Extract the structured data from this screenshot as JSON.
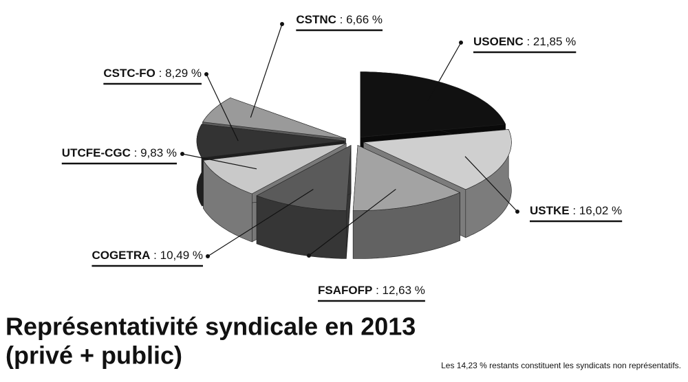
{
  "chart_data": {
    "type": "pie",
    "title": "Représentativité syndicale en 2013",
    "subtitle": "(privé + public)",
    "note": "Les 14,23 % restants constituent les syndicats non représentatifs.",
    "label_separator": " : ",
    "categories": [
      "USOENC",
      "USTKE",
      "FSAFOFP",
      "COGETRA",
      "UTCFE-CGC",
      "CSTC-FO",
      "CSTNC"
    ],
    "values": [
      21.85,
      16.02,
      12.63,
      10.49,
      9.83,
      8.29,
      6.66
    ],
    "value_labels": [
      "21,85 %",
      "16,02 %",
      "12,63 %",
      "10,49 %",
      "9,83 %",
      "8,29 %",
      "6,66 %"
    ],
    "colors": [
      "#111111",
      "#cfcfcf",
      "#a3a3a3",
      "#5a5a5a",
      "#c9c9c9",
      "#333333",
      "#9a9a9a"
    ]
  }
}
